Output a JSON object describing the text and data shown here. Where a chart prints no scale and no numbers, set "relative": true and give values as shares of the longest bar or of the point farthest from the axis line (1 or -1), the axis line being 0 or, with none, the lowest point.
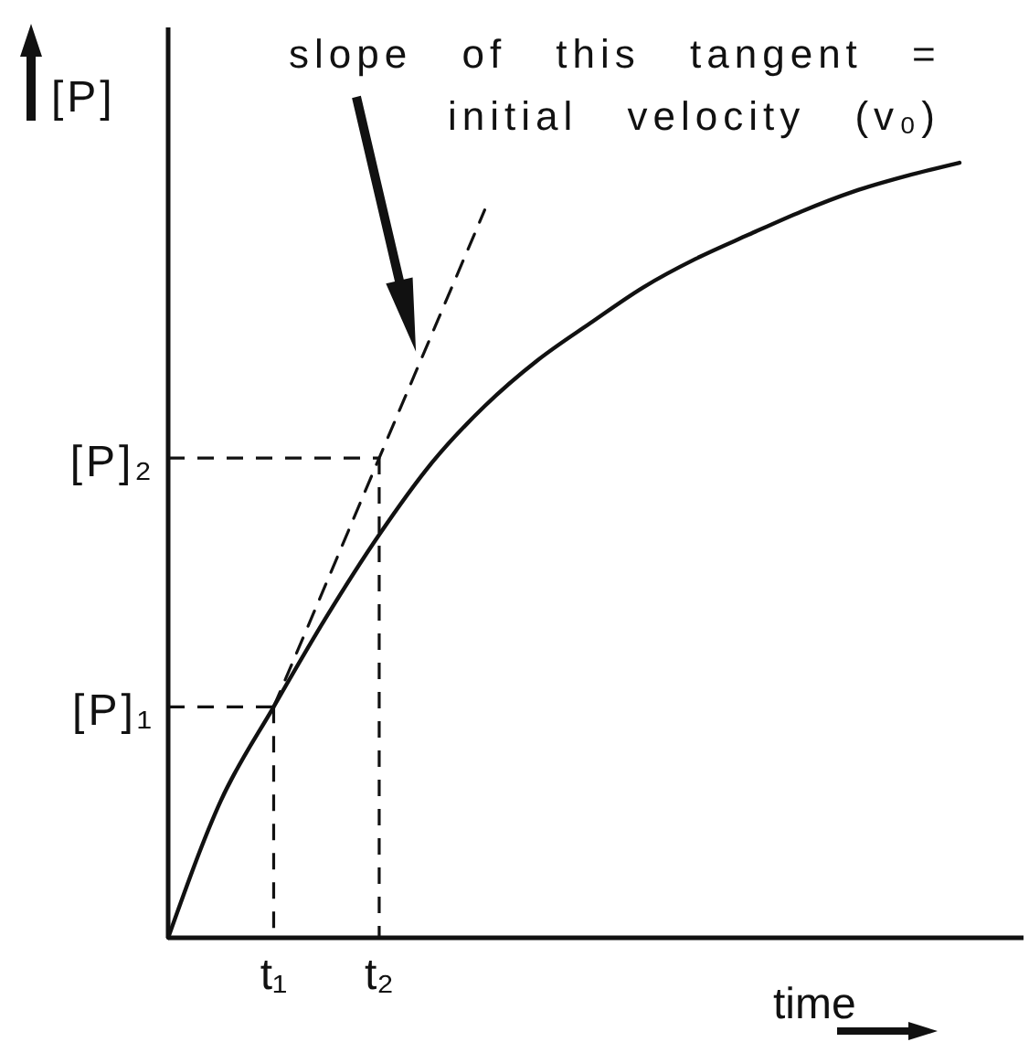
{
  "chart_data": {
    "type": "line",
    "relative": true,
    "xlabel": "time",
    "ylabel": "[P]",
    "categories": [
      null,
      null,
      "t₁",
      null,
      "t₂",
      null,
      null,
      null,
      null,
      null,
      null,
      null,
      null,
      null,
      null,
      null
    ],
    "series": [
      {
        "color": "#111111",
        "values": [
          0,
          0.177,
          0.298,
          0.414,
          0.52,
          0.613,
          0.686,
          0.745,
          0.793,
          0.839,
          0.876,
          0.907,
          0.937,
          0.963,
          0.983,
          1
        ]
      },
      {
        "color": "#111111",
        "line_style": "dashed",
        "values": [
          null,
          null,
          0.298,
          0.458,
          0.619,
          0.779,
          0.939,
          null,
          null,
          null,
          null,
          null,
          null,
          null,
          null,
          null
        ]
      }
    ],
    "ref_lines": [
      {
        "axis": "y",
        "value": 0.298,
        "label": "[P]₁",
        "color": "#111111",
        "line_style": "dashed"
      },
      {
        "axis": "y",
        "value": 0.619,
        "label": "[P]₂",
        "color": "#111111",
        "line_style": "dashed"
      },
      {
        "axis": "x",
        "value": "t₁",
        "color": "#111111",
        "line_style": "dashed"
      },
      {
        "axis": "x",
        "value": "t₂",
        "color": "#111111",
        "line_style": "dashed"
      }
    ],
    "annotations": [
      "slope of this tangent =\ninitial velocity (v₀)"
    ]
  }
}
